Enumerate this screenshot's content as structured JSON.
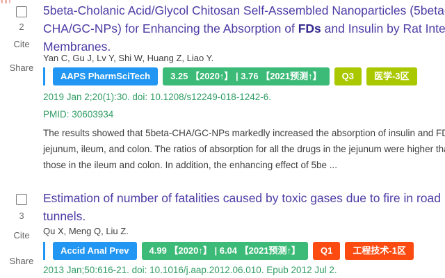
{
  "colors": {
    "journal_badge_blue": "#2196f3",
    "impact_badge_green": "#3cba77",
    "quartile_zone_lime": "#aac800",
    "quartile_zone_orange": "#fb4b10",
    "citation_green": "#2f9c63",
    "title_purple": "#4c3ba5"
  },
  "results": [
    {
      "index": "2",
      "cite_label": "Cite",
      "share_label": "Share",
      "title": {
        "line1": "5beta-Cholanic Acid/Glycol Chitosan Self-Assembled Nanoparticles (5beta-",
        "line2_pre": "CHA/GC-NPs) for Enhancing the Absorption of ",
        "line2_term": "FDs",
        "line2_post": " and Insulin by Rat Intestinal",
        "line3": "Membranes."
      },
      "authors": "Yan C, Gu J, Lv Y, Shi W, Huang Z, Liao Y.",
      "badges": {
        "journal": "AAPS PharmSciTech",
        "impact": "3.25 【2020↑】 | 3.76 【2021预测↑】",
        "quartile": "Q3",
        "zone": "医学-3区"
      },
      "citation": "2019 Jan 2;20(1):30. doi: 10.1208/s12249-018-1242-6.",
      "pmid": "PMID: 30603934",
      "snippet": {
        "line1": "The results showed that 5beta-CHA/GC-NPs markedly increased the absorption of insulin and FDs in the",
        "line2": "jejunum, ileum, and colon. The ratios of absorption for all the drugs in the jejunum were higher than",
        "line3": "those in the ileum and colon. In addition, the enhancing effect of 5be ..."
      }
    },
    {
      "index": "3",
      "cite_label": "Cite",
      "share_label": "Share",
      "title": {
        "line1": "Estimation of number of fatalities caused by toxic gases due to fire in road",
        "line2": "tunnels."
      },
      "authors": "Qu X, Meng Q, Liu Z.",
      "badges": {
        "journal": "Accid Anal Prev",
        "impact": "4.99 【2020↑】 | 6.04 【2021预测↑】",
        "quartile": "Q1",
        "zone": "工程技术-1区"
      },
      "citation": "2013 Jan;50:616-21. doi: 10.1016/j.aap.2012.06.010. Epub 2012 Jul 2."
    }
  ]
}
